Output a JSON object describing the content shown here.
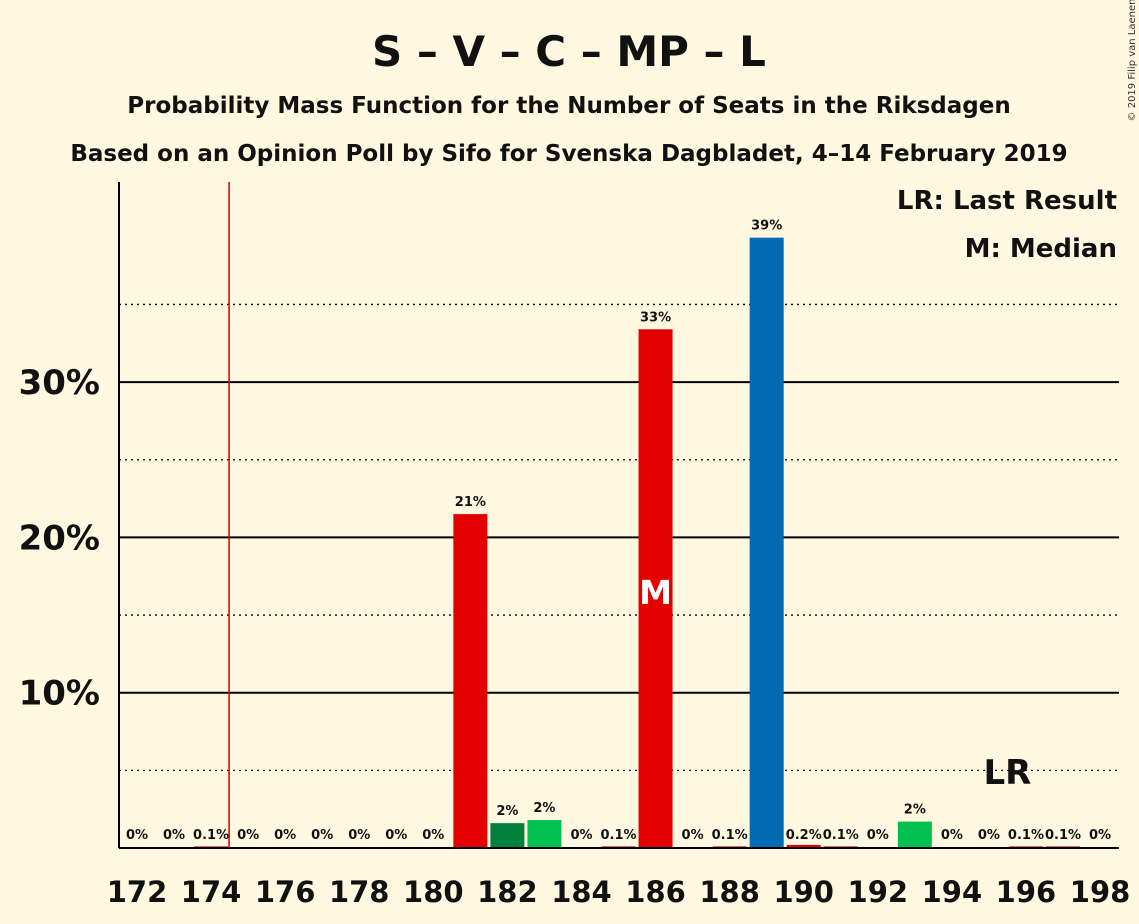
{
  "title": "S – V – C – MP – L",
  "subtitle1": "Probability Mass Function for the Number of Seats in the Riksdagen",
  "subtitle2": "Based on an Opinion Poll by Sifo for Svenska Dagbladet, 4–14 February 2019",
  "copyright": "© 2019 Filip van Laenen",
  "legend": {
    "lr": "LR: Last Result",
    "median": "M: Median"
  },
  "median_marker": "M",
  "lr_marker": "LR",
  "colors": {
    "background": "#fff8e1",
    "red": "#e30000",
    "dark_green": "#00803c",
    "green": "#00c050",
    "blue": "#006ab3",
    "last_result_line": "#cc0000"
  },
  "chart_data": {
    "type": "bar",
    "x": [
      172,
      173,
      174,
      175,
      176,
      177,
      178,
      179,
      180,
      181,
      182,
      183,
      184,
      185,
      186,
      187,
      188,
      189,
      190,
      191,
      192,
      193,
      194,
      195,
      196,
      197,
      198
    ],
    "values": [
      0,
      0,
      0.1,
      0,
      0,
      0,
      0,
      0,
      0,
      21.5,
      1.6,
      1.8,
      0,
      0.1,
      33.4,
      0,
      0.1,
      39.3,
      0.2,
      0.1,
      0,
      1.7,
      0,
      0,
      0.1,
      0.1,
      0
    ],
    "labels": [
      "0%",
      "0%",
      "0.1%",
      "0%",
      "0%",
      "0%",
      "0%",
      "0%",
      "0%",
      "21%",
      "2%",
      "2%",
      "0%",
      "0.1%",
      "33%",
      "0%",
      "0.1%",
      "39%",
      "0.2%",
      "0.1%",
      "0%",
      "2%",
      "0%",
      "0%",
      "0.1%",
      "0.1%",
      "0%"
    ],
    "bar_colors": [
      "#e30000",
      "#e30000",
      "#e30000",
      "#e30000",
      "#e30000",
      "#e30000",
      "#e30000",
      "#e30000",
      "#e30000",
      "#e30000",
      "#00803c",
      "#00c050",
      "#e30000",
      "#e30000",
      "#e30000",
      "#e30000",
      "#e30000",
      "#006ab3",
      "#e30000",
      "#e30000",
      "#e30000",
      "#00c050",
      "#e30000",
      "#e30000",
      "#e30000",
      "#e30000",
      "#e30000"
    ],
    "xticks": [
      "172",
      "174",
      "176",
      "178",
      "180",
      "182",
      "184",
      "186",
      "188",
      "190",
      "192",
      "194",
      "196",
      "198"
    ],
    "yticks": [
      "10%",
      "20%",
      "30%"
    ],
    "ylim": [
      0,
      43
    ],
    "median": 186,
    "last_result": 174.5,
    "lr_label_at": 195.5
  }
}
